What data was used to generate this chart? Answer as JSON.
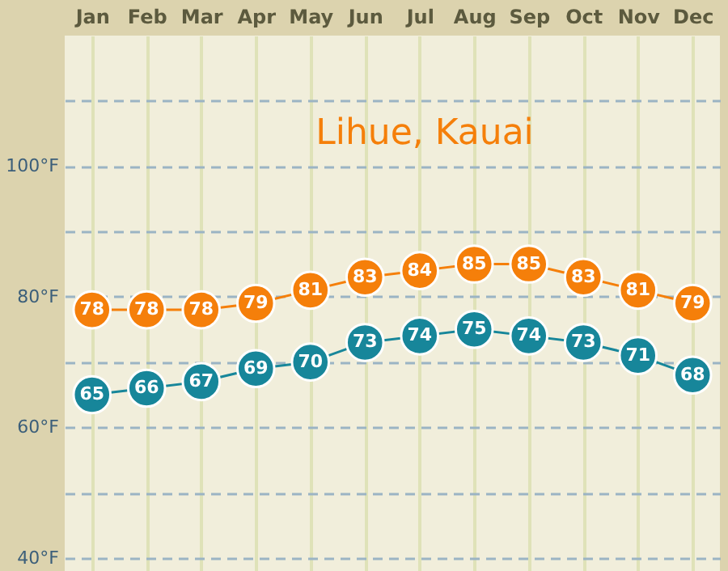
{
  "chart_data": {
    "type": "line",
    "title": "Lihue, Kauai",
    "categories": [
      "Jan",
      "Feb",
      "Mar",
      "Apr",
      "May",
      "Jun",
      "Jul",
      "Aug",
      "Sep",
      "Oct",
      "Nov",
      "Dec"
    ],
    "series": [
      {
        "color": "#f57f0a",
        "values": [
          78,
          78,
          78,
          79,
          81,
          83,
          84,
          85,
          85,
          83,
          81,
          79
        ]
      },
      {
        "color": "#17869a",
        "values": [
          65,
          66,
          67,
          69,
          70,
          73,
          74,
          75,
          74,
          73,
          71,
          68
        ]
      }
    ],
    "ylim": [
      38,
      120
    ],
    "yticks": [
      {
        "value": 40,
        "label": "40°F"
      },
      {
        "value": 50,
        "label": null
      },
      {
        "value": 60,
        "label": "60°F"
      },
      {
        "value": 70,
        "label": null
      },
      {
        "value": 80,
        "label": "80°F"
      },
      {
        "value": 90,
        "label": null
      },
      {
        "value": 100,
        "label": "100°F"
      },
      {
        "value": 110,
        "label": null
      }
    ],
    "grid": true,
    "marker": "circle",
    "line_style": "solid",
    "data_labels": true
  }
}
